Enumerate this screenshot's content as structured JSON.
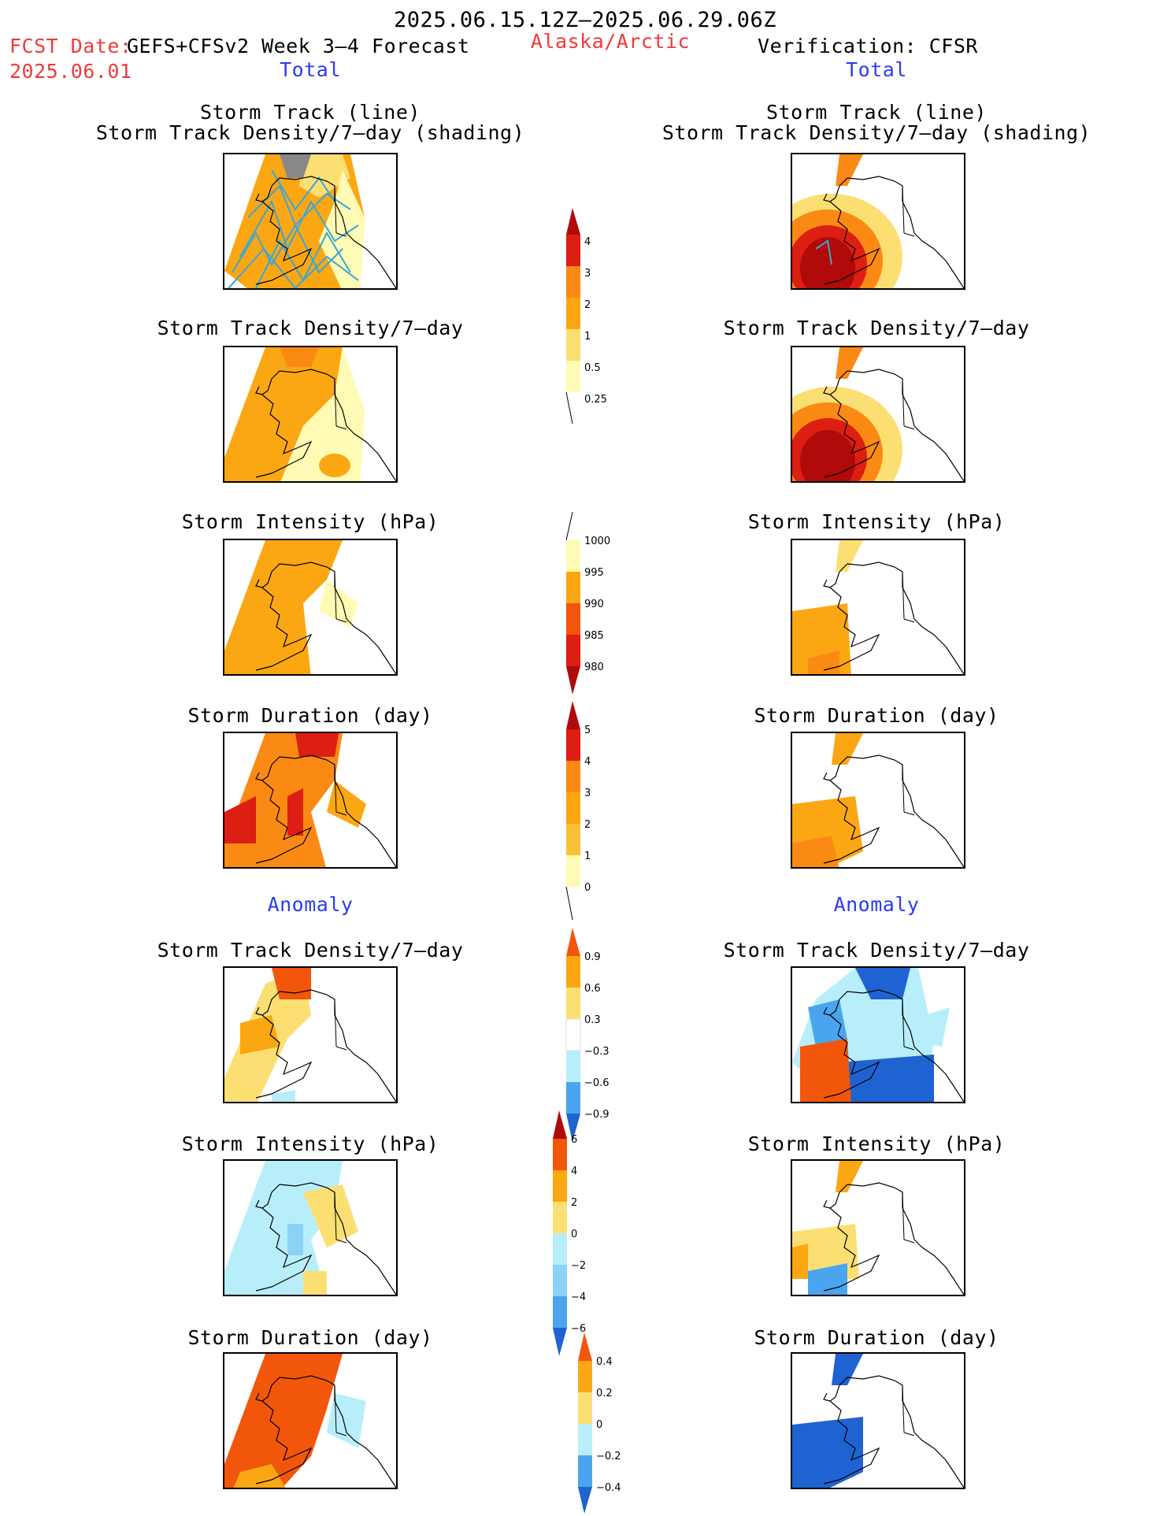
{
  "header": {
    "date_range": "2025.06.15.12Z–2025.06.29.06Z",
    "fcst_label": "FCST Date:",
    "fcst_source": "GEFS+CFSv2 Week 3–4 Forecast",
    "fcst_date": "2025.06.01",
    "region": "Alaska/Arctic",
    "verification": "Verification: CFSR",
    "left_total": "Total",
    "right_total": "Total",
    "left_anomaly": "Anomaly",
    "right_anomaly": "Anomaly"
  },
  "panels": {
    "track_title_line1": "Storm Track (line)",
    "track_title_line2": "Storm Track Density/7–day (shading)",
    "density_title": "Storm Track Density/7–day",
    "intensity_title": "Storm Intensity (hPa)",
    "duration_title": "Storm Duration (day)"
  },
  "colors": {
    "c0": "#fffbb4",
    "c1": "#fcdf72",
    "c2": "#f8c13a",
    "c3": "#fba713",
    "c4": "#fb8a14",
    "c5": "#f2560b",
    "c6": "#dc1e13",
    "c7": "#b00a0a",
    "b1": "#b8eefa",
    "b2": "#8cd2f6",
    "b3": "#4aa5ee",
    "b4": "#1f63d2",
    "track": "#3aa6d8"
  },
  "colorbars": [
    {
      "name": "total-density-colorbar",
      "labels": [
        "4",
        "3",
        "2",
        "1",
        "0.5",
        "0.25"
      ]
    },
    {
      "name": "total-intensity-colorbar",
      "labels": [
        "1000",
        "995",
        "990",
        "985",
        "980"
      ]
    },
    {
      "name": "total-duration-colorbar",
      "labels": [
        "5",
        "4",
        "3",
        "2",
        "1",
        "0"
      ]
    },
    {
      "name": "anomaly-density-colorbar",
      "labels": [
        "0.9",
        "0.6",
        "0.3",
        "−0.3",
        "−0.6",
        "−0.9"
      ]
    },
    {
      "name": "anomaly-intensity-colorbar",
      "labels": [
        "6",
        "4",
        "2",
        "0",
        "−2",
        "−4",
        "−6"
      ]
    },
    {
      "name": "anomaly-duration-colorbar",
      "labels": [
        "0.4",
        "0.2",
        "0",
        "−0.2",
        "−0.4"
      ]
    }
  ]
}
